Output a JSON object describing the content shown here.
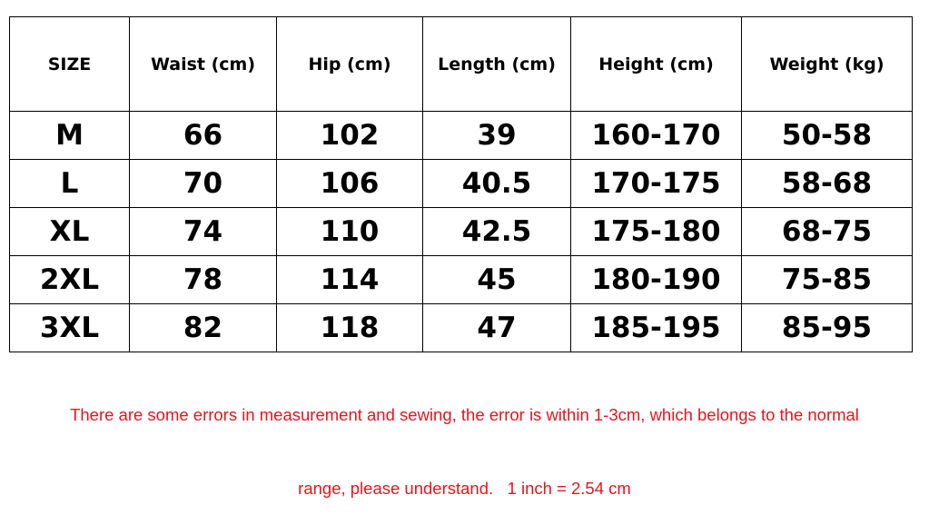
{
  "table": {
    "headers": [
      "SIZE",
      "Waist (cm)",
      "Hip  (cm)",
      "Length  (cm)",
      "Height  (cm)",
      "Weight  (kg)"
    ],
    "rows": [
      [
        "M",
        "66",
        "102",
        "39",
        "160-170",
        "50-58"
      ],
      [
        "L",
        "70",
        "106",
        "40.5",
        "170-175",
        "58-68"
      ],
      [
        "XL",
        "74",
        "110",
        "42.5",
        "175-180",
        "68-75"
      ],
      [
        "2XL",
        "78",
        "114",
        "45",
        "180-190",
        "75-85"
      ],
      [
        "3XL",
        "82",
        "118",
        "47",
        "185-195",
        "85-95"
      ]
    ]
  },
  "note": {
    "line1": "There are some errors in measurement and sewing, the error is within 1-3cm, which belongs to the normal",
    "line2": "range, please understand.   1 inch = 2.54 cm",
    "color": "#e8141c"
  }
}
